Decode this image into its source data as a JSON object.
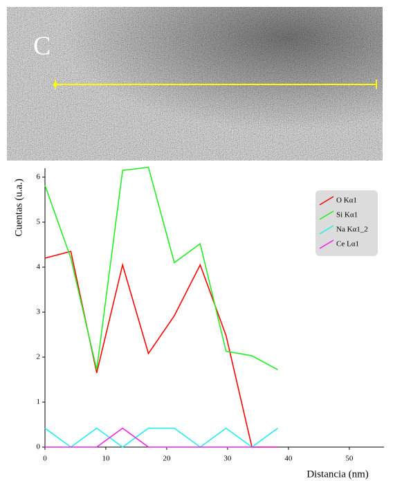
{
  "image_label": "C",
  "chart_data": {
    "type": "line",
    "x_label": "Distancia (nm)",
    "y_label": "Cuentas (u.a.)",
    "x": [
      0,
      4.25,
      8.5,
      12.75,
      17,
      21.25,
      25.5,
      29.75,
      34,
      38.25
    ],
    "series": [
      {
        "name": "O Kα1",
        "color": "#ff0000",
        "values": [
          4.2,
          4.35,
          1.65,
          4.05,
          2.08,
          2.92,
          4.05,
          2.48,
          0,
          0
        ]
      },
      {
        "name": "Si Kα1",
        "color": "#22ee22",
        "values": [
          5.82,
          4.2,
          1.72,
          6.15,
          6.22,
          4.1,
          4.52,
          2.13,
          2.03,
          1.72
        ]
      },
      {
        "name": "Na Kα1_2",
        "color": "#22eeee",
        "values": [
          0.42,
          0,
          0.42,
          0,
          0.42,
          0.42,
          0,
          0.42,
          0,
          0.42
        ]
      },
      {
        "name": "Ce Lα1",
        "color": "#ee22ee",
        "values": [
          0,
          0,
          0,
          0.42,
          0,
          0,
          0,
          0,
          0,
          0
        ]
      }
    ],
    "xlim": [
      0,
      55.7
    ],
    "xticks": [
      0,
      10,
      20,
      30,
      40,
      50
    ],
    "ylim": [
      0,
      6.2
    ],
    "yticks": [
      0,
      1,
      2,
      3,
      4,
      5,
      6
    ],
    "legend": "upper right"
  }
}
